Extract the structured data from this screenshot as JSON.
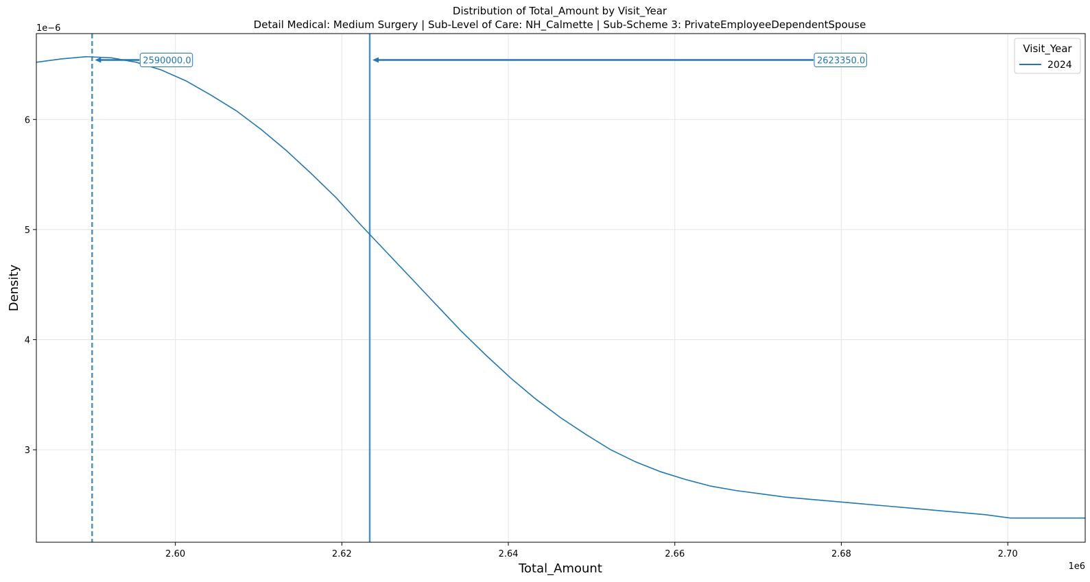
{
  "chart_data": {
    "type": "line",
    "title": "Distribution of Total_Amount by Visit_Year",
    "subtitle": "Detail Medical: Medium Surgery | Sub-Level of Care: NH_Calmette | Sub-Scheme 3: PrivateEmployeeDependentSpouse",
    "xlabel": "Total_Amount",
    "ylabel": "Density",
    "x_offset_label": "1e6",
    "y_offset_label": "1e−6",
    "xlim": [
      2.5833,
      2.7093
    ],
    "ylim": [
      2.16,
      6.78
    ],
    "x_ticks": [
      2.6,
      2.62,
      2.64,
      2.66,
      2.68,
      2.7
    ],
    "x_tick_labels": [
      "2.60",
      "2.62",
      "2.64",
      "2.66",
      "2.68",
      "2.70"
    ],
    "y_ticks": [
      3,
      4,
      5,
      6
    ],
    "y_tick_labels": [
      "3",
      "4",
      "5",
      "6"
    ],
    "grid": true,
    "legend": {
      "title": "Visit_Year",
      "placement": "top-right"
    },
    "series": [
      {
        "name": "2024",
        "color": "#1f77b4",
        "x": [
          2.5833,
          2.5863,
          2.5893,
          2.5923,
          2.5953,
          2.5983,
          2.6013,
          2.6043,
          2.6073,
          2.6103,
          2.6133,
          2.6163,
          2.6193,
          2.6223,
          2.6253,
          2.6283,
          2.6313,
          2.6343,
          2.6373,
          2.6403,
          2.6433,
          2.6463,
          2.6493,
          2.6523,
          2.6553,
          2.6583,
          2.6613,
          2.6643,
          2.6673,
          2.6703,
          2.6733,
          2.6763,
          2.6793,
          2.6823,
          2.6853,
          2.6883,
          2.6913,
          2.6943,
          2.6973,
          2.7003,
          2.7033,
          2.7063,
          2.7093
        ],
        "values": [
          6.52,
          6.55,
          6.57,
          6.56,
          6.52,
          6.45,
          6.35,
          6.22,
          6.08,
          5.91,
          5.72,
          5.51,
          5.29,
          5.04,
          4.8,
          4.56,
          4.32,
          4.08,
          3.86,
          3.65,
          3.46,
          3.29,
          3.14,
          3.0,
          2.89,
          2.8,
          2.73,
          2.67,
          2.63,
          2.6,
          2.57,
          2.55,
          2.53,
          2.51,
          2.49,
          2.47,
          2.45,
          2.43,
          2.41,
          2.38,
          2.38,
          2.38,
          2.38
        ]
      }
    ],
    "vlines": [
      {
        "x": 2.59,
        "style": "dashed",
        "label": "2590000.0"
      },
      {
        "x": 2.62335,
        "style": "solid",
        "label": "2623350.0"
      }
    ],
    "annotation_y": 6.54
  }
}
